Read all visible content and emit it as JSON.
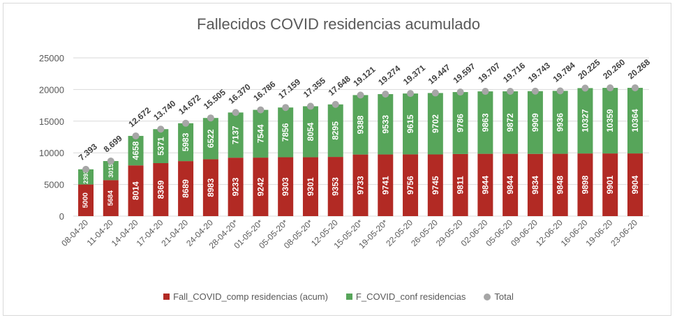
{
  "chart_data": {
    "type": "bar",
    "stacked": true,
    "title": "Fallecidos COVID residencias acumulado",
    "categories": [
      "08-04-20",
      "11-04-20",
      "14-04-20",
      "17-04-20",
      "21-04-20",
      "24-04-20",
      "28-04-20*",
      "01-05-20*",
      "05-05-20*",
      "08-05-20*",
      "12-05-20",
      "15-05-20*",
      "19-05-20*",
      "22-05-20",
      "26-05-20",
      "29-05-20",
      "02-06-20",
      "05-06-20",
      "09-06-20",
      "12-06-20",
      "16-06-20",
      "19-06-20",
      "23-06-20"
    ],
    "series": [
      {
        "name": "Fall_COVID_comp residencias (acum)",
        "color": "#b22a24",
        "values": [
          5000,
          5684,
          8014,
          8369,
          8689,
          8983,
          9233,
          9242,
          9303,
          9301,
          9353,
          9733,
          9741,
          9756,
          9745,
          9811,
          9844,
          9844,
          9834,
          9848,
          9898,
          9901,
          9904
        ]
      },
      {
        "name": "F_COVID_conf residencias",
        "color": "#57a55a",
        "values": [
          2393,
          3015,
          4658,
          5371,
          5983,
          6522,
          7137,
          7544,
          7856,
          8054,
          8295,
          9388,
          9533,
          9615,
          9702,
          9786,
          9863,
          9872,
          9909,
          9936,
          10327,
          10359,
          10364
        ]
      },
      {
        "name": "Total",
        "color": "#a6a6a6",
        "marker": "dot",
        "values": [
          7393,
          8699,
          12672,
          13740,
          14672,
          15505,
          16370,
          16786,
          17159,
          17355,
          17648,
          19121,
          19274,
          19371,
          19447,
          19597,
          19707,
          19716,
          19743,
          19784,
          20225,
          20260,
          20268
        ],
        "labels": [
          "7.393",
          "8.699",
          "12.672",
          "13.740",
          "14.672",
          "15.505",
          "16.370",
          "16.786",
          "17.159",
          "17.355",
          "17.648",
          "19.121",
          "19.274",
          "19.371",
          "19.447",
          "19.597",
          "19.707",
          "19.716",
          "19.743",
          "19.784",
          "20.225",
          "20.260",
          "20.268"
        ]
      }
    ],
    "yticks": [
      "0",
      "5000",
      "10000",
      "15000",
      "20000",
      "25000"
    ],
    "ylim": [
      0,
      25000
    ],
    "grid": true,
    "legend": "bottom"
  }
}
